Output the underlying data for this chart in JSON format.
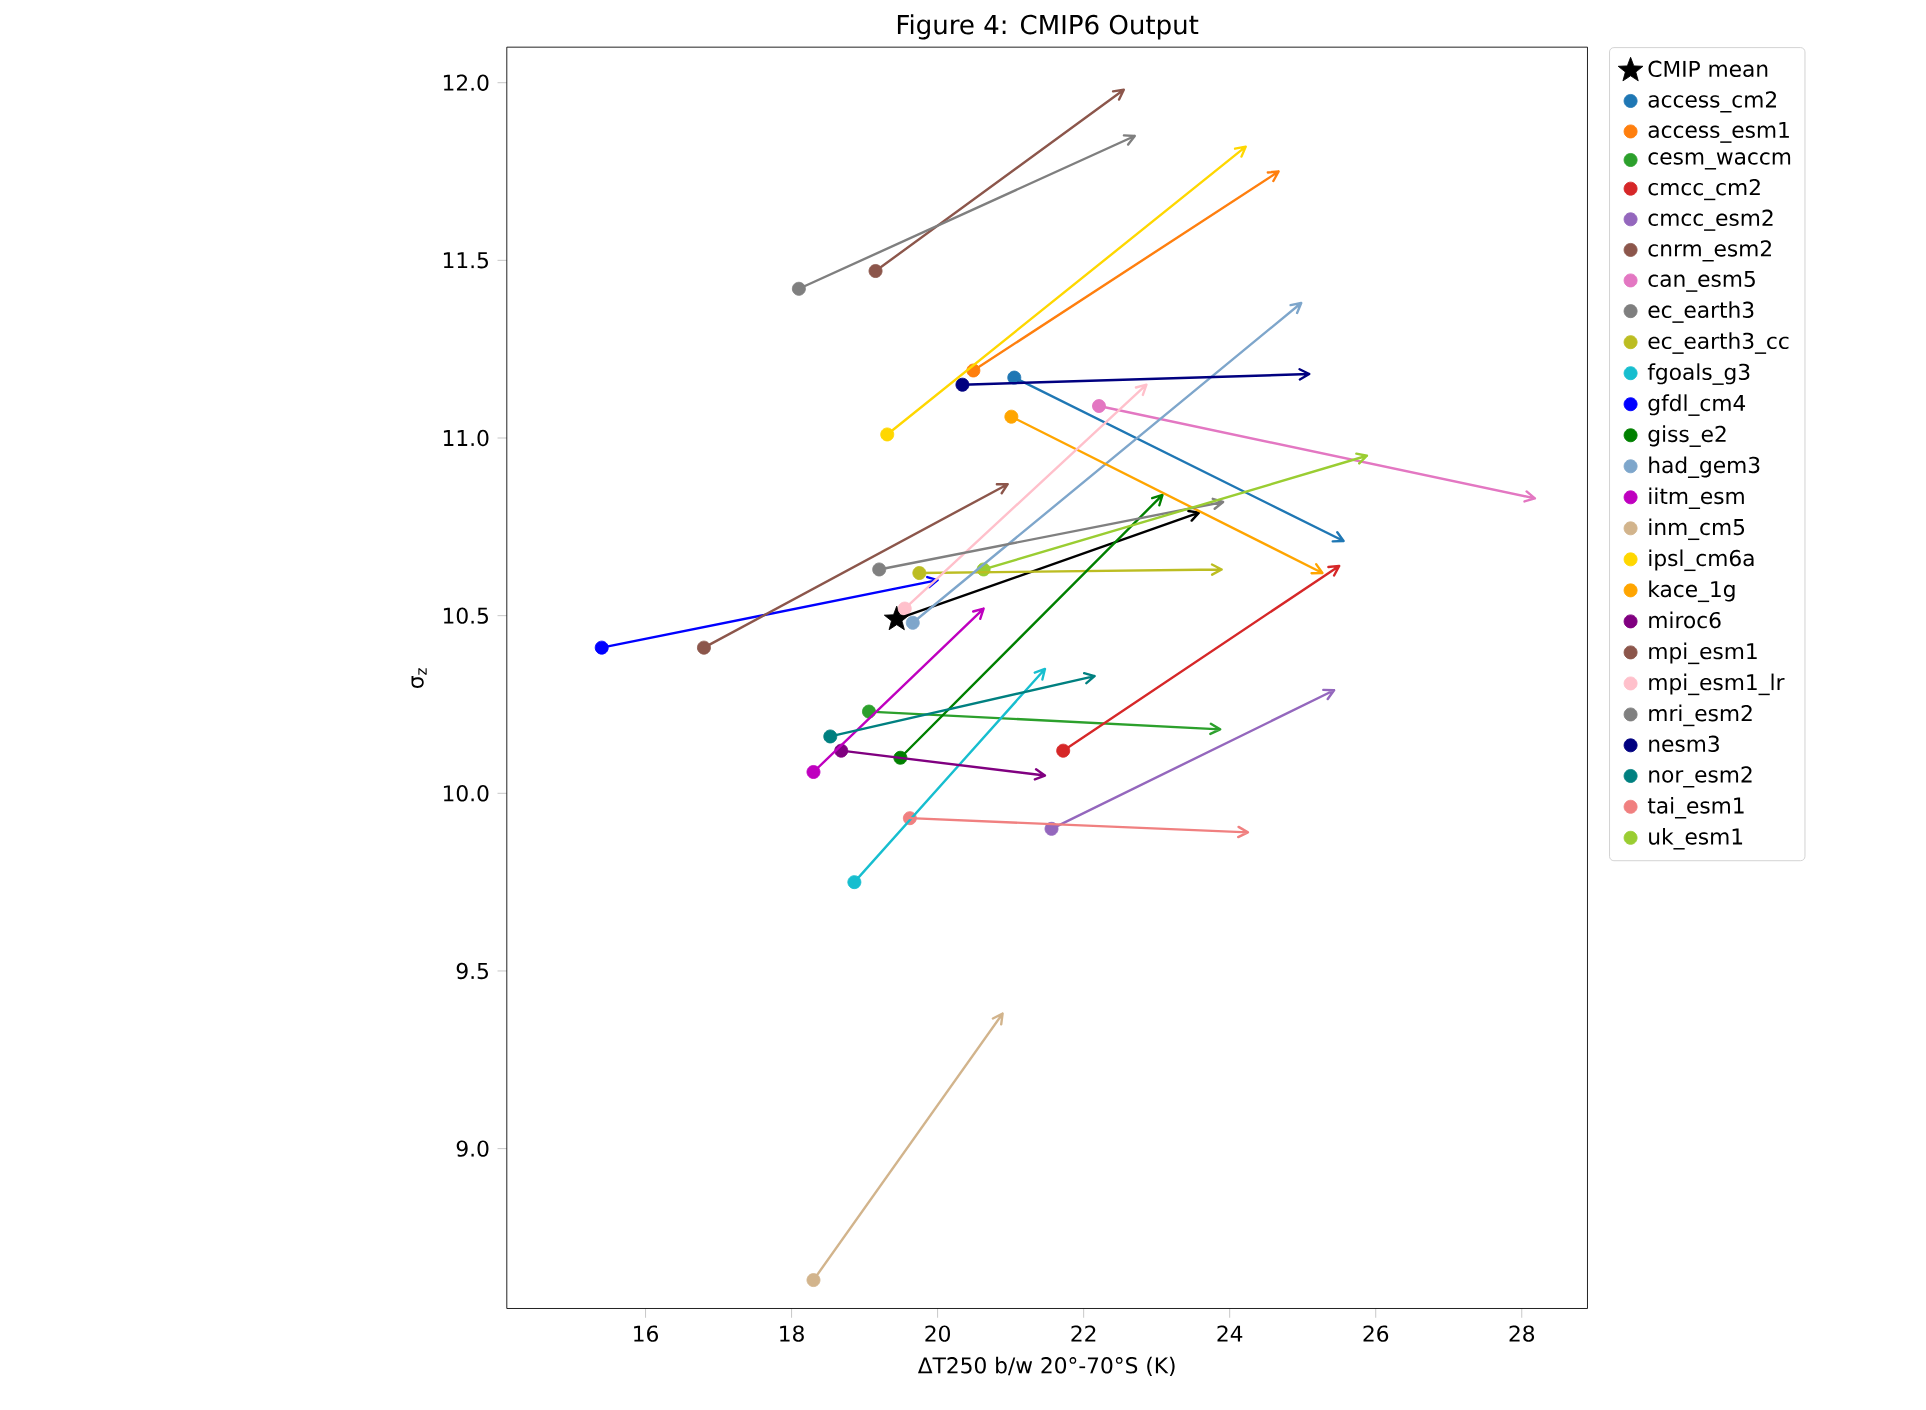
{
  "chart_data": {
    "type": "scatter",
    "title": "Figure 4: CMIP6 Output",
    "xlabel": "ΔT250 b/w 20°-70°S (K)",
    "ylabel": "σ$_{z}$",
    "xlim": [
      14.1,
      28.9
    ],
    "ylim": [
      8.55,
      12.1
    ],
    "xticks": [
      16,
      18,
      20,
      22,
      24,
      26,
      28
    ],
    "yticks": [
      {
        "value": 9,
        "label": "9.0"
      },
      {
        "value": 9.5,
        "label": "9.5"
      },
      {
        "value": 10,
        "label": "10.0"
      },
      {
        "value": 10.5,
        "label": "10.5"
      },
      {
        "value": 11,
        "label": "11.0"
      },
      {
        "value": 11.5,
        "label": "11.5"
      },
      {
        "value": 12,
        "label": "12.0"
      }
    ],
    "grid": false,
    "legend": "right",
    "marker": "circle",
    "series": [
      {
        "name": "CMIP mean",
        "color": "#000000",
        "marker": "star",
        "x": [
          19.44
        ],
        "values": [
          10.49
        ]
      },
      {
        "name": "access_cm2",
        "color": "#1f77b4",
        "x": [
          21.05
        ],
        "values": [
          11.17
        ]
      },
      {
        "name": "access_esm1",
        "color": "#ff7f0e",
        "x": [
          20.49
        ],
        "values": [
          11.19
        ]
      },
      {
        "name": "cesm_waccm",
        "color": "#2ca02c",
        "x": [
          19.06
        ],
        "values": [
          10.23
        ]
      },
      {
        "name": "cmcc_cm2",
        "color": "#d62728",
        "x": [
          21.72
        ],
        "values": [
          10.12
        ]
      },
      {
        "name": "cmcc_esm2",
        "color": "#9467bd",
        "x": [
          21.56
        ],
        "values": [
          9.9
        ]
      },
      {
        "name": "cnrm_esm2",
        "color": "#8c564b",
        "x": [
          19.15
        ],
        "values": [
          11.47
        ]
      },
      {
        "name": "can_esm5",
        "color": "#e377c2",
        "x": [
          22.21
        ],
        "values": [
          11.09
        ]
      },
      {
        "name": "ec_earth3",
        "color": "#7f7f7f",
        "x": [
          18.1
        ],
        "values": [
          11.42
        ]
      },
      {
        "name": "ec_earth3_cc",
        "color": "#bcbd22",
        "x": [
          19.75
        ],
        "values": [
          10.62
        ]
      },
      {
        "name": "fgoals_g3",
        "color": "#17becf",
        "x": [
          18.86
        ],
        "values": [
          9.75
        ]
      },
      {
        "name": "gfdl_cm4",
        "color": "#0000ff",
        "x": [
          15.4
        ],
        "values": [
          10.41
        ]
      },
      {
        "name": "giss_e2",
        "color": "#008000",
        "x": [
          19.49
        ],
        "values": [
          10.1
        ]
      },
      {
        "name": "had_gem3",
        "color": "#7ea6cb",
        "x": [
          19.66
        ],
        "values": [
          10.48
        ]
      },
      {
        "name": "iitm_esm",
        "color": "#bf00bf",
        "x": [
          18.3
        ],
        "values": [
          10.06
        ]
      },
      {
        "name": "inm_cm5",
        "color": "#d2b48c",
        "x": [
          18.3
        ],
        "values": [
          8.63
        ]
      },
      {
        "name": "ipsl_cm6a",
        "color": "#ffd700",
        "x": [
          19.31
        ],
        "values": [
          11.01
        ]
      },
      {
        "name": "kace_1g",
        "color": "#ffa500",
        "x": [
          21.01
        ],
        "values": [
          11.06
        ]
      },
      {
        "name": "miroc6",
        "color": "#800080",
        "x": [
          18.68
        ],
        "values": [
          10.12
        ]
      },
      {
        "name": "mpi_esm1",
        "color": "#8c564b",
        "x": [
          16.8
        ],
        "values": [
          10.41
        ]
      },
      {
        "name": "mpi_esm1_lr",
        "color": "#ffc0cb",
        "x": [
          19.55
        ],
        "values": [
          10.52
        ]
      },
      {
        "name": "mri_esm2",
        "color": "#808080",
        "x": [
          19.2
        ],
        "values": [
          10.63
        ]
      },
      {
        "name": "nesm3",
        "color": "#000080",
        "x": [
          20.34
        ],
        "values": [
          11.15
        ]
      },
      {
        "name": "nor_esm2",
        "color": "#008080",
        "x": [
          18.53
        ],
        "values": [
          10.16
        ]
      },
      {
        "name": "tai_esm1",
        "color": "#f08080",
        "x": [
          19.62
        ],
        "values": [
          9.93
        ]
      },
      {
        "name": "uk_esm1",
        "color": "#9acd32",
        "x": [
          20.63
        ],
        "values": [
          10.63
        ]
      },
      {
        "type": "line",
        "marker": "none",
        "color": "#000000",
        "x": [
          19.44,
          23.58
        ],
        "values": [
          10.49,
          10.79
        ]
      },
      {
        "type": "line",
        "marker": "none",
        "color": "#1f77b4",
        "x": [
          21.05,
          25.56
        ],
        "values": [
          11.17,
          10.71
        ]
      },
      {
        "type": "line",
        "marker": "none",
        "color": "#ff7f0e",
        "x": [
          20.49,
          24.67
        ],
        "values": [
          11.19,
          11.75
        ]
      },
      {
        "type": "line",
        "marker": "none",
        "color": "#2ca02c",
        "x": [
          19.06,
          23.87
        ],
        "values": [
          10.23,
          10.18
        ]
      },
      {
        "type": "line",
        "marker": "none",
        "color": "#d62728",
        "x": [
          21.72,
          25.5
        ],
        "values": [
          10.12,
          10.64
        ]
      },
      {
        "type": "line",
        "marker": "none",
        "color": "#9467bd",
        "x": [
          21.56,
          25.43
        ],
        "values": [
          9.9,
          10.29
        ]
      },
      {
        "type": "line",
        "marker": "none",
        "color": "#8c564b",
        "x": [
          19.15,
          22.55
        ],
        "values": [
          11.47,
          11.98
        ]
      },
      {
        "type": "line",
        "marker": "none",
        "color": "#e377c2",
        "x": [
          22.21,
          28.18
        ],
        "values": [
          11.09,
          10.83
        ]
      },
      {
        "type": "line",
        "marker": "none",
        "color": "#7f7f7f",
        "x": [
          18.1,
          22.7
        ],
        "values": [
          11.42,
          11.85
        ]
      },
      {
        "type": "line",
        "marker": "none",
        "color": "#bcbd22",
        "x": [
          19.75,
          23.89
        ],
        "values": [
          10.62,
          10.63
        ]
      },
      {
        "type": "line",
        "marker": "none",
        "color": "#17becf",
        "x": [
          18.86,
          21.47
        ],
        "values": [
          9.75,
          10.35
        ]
      },
      {
        "type": "line",
        "marker": "none",
        "color": "#0000ff",
        "x": [
          15.4,
          20.0
        ],
        "values": [
          10.41,
          10.6
        ]
      },
      {
        "type": "line",
        "marker": "none",
        "color": "#008000",
        "x": [
          19.49,
          23.08
        ],
        "values": [
          10.1,
          10.84
        ]
      },
      {
        "type": "line",
        "marker": "none",
        "color": "#7ea6cb",
        "x": [
          19.66,
          24.98
        ],
        "values": [
          10.48,
          11.38
        ]
      },
      {
        "type": "line",
        "marker": "none",
        "color": "#bf00bf",
        "x": [
          18.3,
          20.63
        ],
        "values": [
          10.06,
          10.52
        ]
      },
      {
        "type": "line",
        "marker": "none",
        "color": "#d2b48c",
        "x": [
          18.3,
          20.89
        ],
        "values": [
          8.63,
          9.38
        ]
      },
      {
        "type": "line",
        "marker": "none",
        "color": "#ffd700",
        "x": [
          19.31,
          24.22
        ],
        "values": [
          11.01,
          11.82
        ]
      },
      {
        "type": "line",
        "marker": "none",
        "color": "#ffa500",
        "x": [
          21.01,
          25.27
        ],
        "values": [
          11.06,
          10.62
        ]
      },
      {
        "type": "line",
        "marker": "none",
        "color": "#800080",
        "x": [
          18.68,
          21.47
        ],
        "values": [
          10.12,
          10.05
        ]
      },
      {
        "type": "line",
        "marker": "none",
        "color": "#8c564b",
        "x": [
          16.8,
          20.96
        ],
        "values": [
          10.41,
          10.87
        ]
      },
      {
        "type": "line",
        "marker": "none",
        "color": "#ffc0cb",
        "x": [
          19.55,
          22.86
        ],
        "values": [
          10.52,
          11.15
        ]
      },
      {
        "type": "line",
        "marker": "none",
        "color": "#808080",
        "x": [
          19.2,
          23.91
        ],
        "values": [
          10.63,
          10.82
        ]
      },
      {
        "type": "line",
        "marker": "none",
        "color": "#000080",
        "x": [
          20.34,
          25.09
        ],
        "values": [
          11.15,
          11.18
        ]
      },
      {
        "type": "line",
        "marker": "none",
        "color": "#008080",
        "x": [
          18.53,
          22.15
        ],
        "values": [
          10.16,
          10.33
        ]
      },
      {
        "type": "line",
        "marker": "none",
        "color": "#f08080",
        "x": [
          19.62,
          24.25
        ],
        "values": [
          9.93,
          9.89
        ]
      },
      {
        "type": "line",
        "marker": "none",
        "color": "#9acd32",
        "x": [
          20.63,
          25.88
        ],
        "values": [
          10.63,
          10.95
        ]
      }
    ]
  }
}
